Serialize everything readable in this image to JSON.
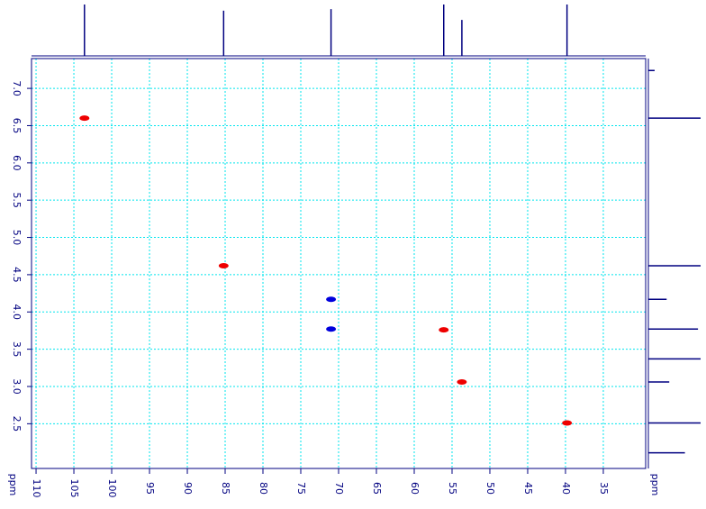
{
  "chart_data": {
    "type": "scatter",
    "x_label": "ppm",
    "y_label": "ppm",
    "xlim": [
      110.6,
      29.4
    ],
    "ylim": [
      7.4,
      1.9
    ],
    "xticks": [
      110,
      105,
      100,
      95,
      90,
      85,
      80,
      75,
      70,
      65,
      60,
      55,
      50,
      45,
      40,
      35
    ],
    "yticks": [
      {
        "value": 7,
        "label": "7.0"
      },
      {
        "value": 6.5,
        "label": "6.5"
      },
      {
        "value": 6,
        "label": "6.0"
      },
      {
        "value": 5.5,
        "label": "5.5"
      },
      {
        "value": 5,
        "label": "5.0"
      },
      {
        "value": 4.5,
        "label": "4.5"
      },
      {
        "value": 4,
        "label": "4.0"
      },
      {
        "value": 3.5,
        "label": "3.5"
      },
      {
        "value": 3,
        "label": "3.0"
      },
      {
        "value": 2.5,
        "label": "2.5"
      }
    ],
    "grid": true,
    "grid_color": "#00e5ee",
    "axis_color": "#000080",
    "series": [
      {
        "color": "#ee0000",
        "x": [
          103.6,
          85.2,
          56.1,
          53.7,
          39.8
        ],
        "values": [
          6.6,
          4.62,
          3.76,
          3.06,
          2.51
        ]
      },
      {
        "color": "#0000dd",
        "x": [
          71.0,
          71.0
        ],
        "values": [
          4.17,
          3.77
        ]
      }
    ],
    "top_trace": {
      "color": "#000080",
      "x": [
        103.6,
        85.2,
        71.0,
        56.1,
        53.7,
        39.8
      ],
      "values": [
        1.0,
        0.88,
        0.91,
        1.0,
        0.7,
        1.0
      ]
    },
    "side_trace": {
      "color": "#000080",
      "y": [
        7.24,
        6.6,
        4.62,
        4.17,
        3.77,
        3.37,
        3.06,
        2.51,
        2.11
      ],
      "values": [
        0.12,
        1.0,
        1.0,
        0.35,
        0.95,
        1.0,
        0.4,
        1.0,
        0.7
      ]
    }
  }
}
